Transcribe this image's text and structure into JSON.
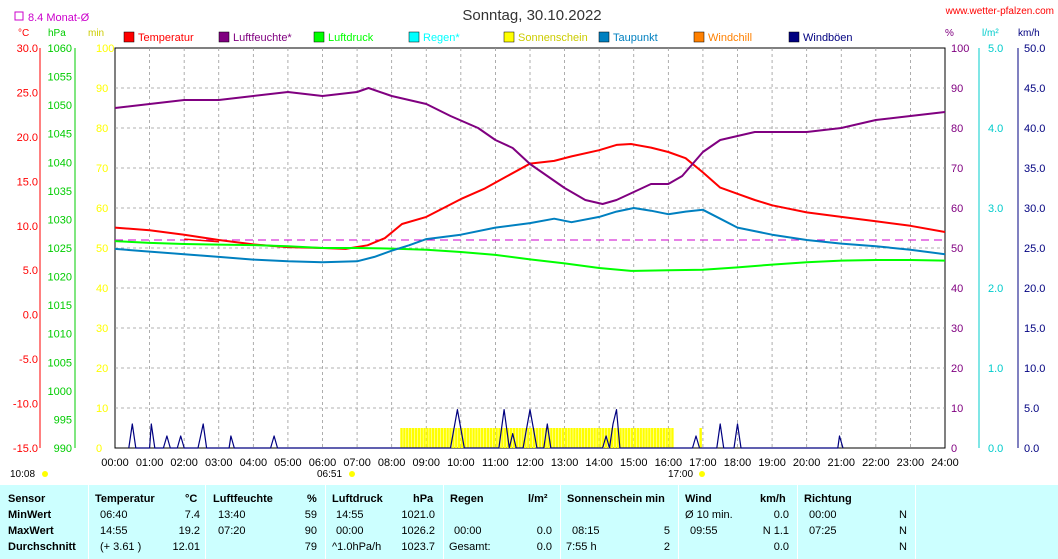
{
  "header": {
    "title": "Sonntag, 30.10.2022",
    "website": "www.wetter-pfalzen.com",
    "month_avg_label": "8.4 Monat-Ø",
    "unit_labels": {
      "temp": "°C",
      "pressure": "hPa",
      "sunshine": "min",
      "humidity": "%",
      "rain": "l/m²",
      "wind": "km/h"
    }
  },
  "footer": {
    "left_time": "10:08",
    "sunrise_time": "06:51",
    "sunset_time": "17:00"
  },
  "legend": [
    {
      "label": "Temperatur",
      "color": "#ff0000"
    },
    {
      "label": "Luftfeuchte*",
      "color": "#800080"
    },
    {
      "label": "Luftdruck",
      "color": "#00ff00"
    },
    {
      "label": "Regen*",
      "color": "#00ffff"
    },
    {
      "label": "Sonnenschein",
      "color": "#ffff00"
    },
    {
      "label": "Taupunkt",
      "color": "#0080c0"
    },
    {
      "label": "Windchill",
      "color": "#ff8000"
    },
    {
      "label": "Windböen",
      "color": "#000080"
    }
  ],
  "chart_data": {
    "type": "line",
    "title": "Sonntag, 30.10.2022",
    "x_ticks": [
      "00:00",
      "01:00",
      "02:00",
      "03:00",
      "04:00",
      "05:00",
      "06:00",
      "07:00",
      "08:00",
      "09:00",
      "10:00",
      "11:00",
      "12:00",
      "13:00",
      "14:00",
      "15:00",
      "16:00",
      "17:00",
      "18:00",
      "19:00",
      "20:00",
      "21:00",
      "22:00",
      "23:00",
      "24:00"
    ],
    "x_range_hours": [
      0,
      24
    ],
    "grid": true,
    "axes": {
      "temperature": {
        "unit": "°C",
        "range": [
          -15,
          30
        ],
        "ticks": [
          "30.0",
          "25.0",
          "20.0",
          "15.0",
          "10.0",
          "5.0",
          "0.0",
          "-5.0",
          "-10.0",
          "-15.0"
        ],
        "color": "#ff0000"
      },
      "pressure": {
        "unit": "hPa",
        "range": [
          990,
          1060
        ],
        "ticks": [
          "1060",
          "1055",
          "1050",
          "1045",
          "1040",
          "1035",
          "1030",
          "1025",
          "1020",
          "1015",
          "1010",
          "1005",
          "1000",
          "995",
          "990"
        ],
        "color": "#00cc00"
      },
      "sunshine": {
        "unit": "min",
        "range": [
          0,
          100
        ],
        "ticks": [
          "100",
          "90",
          "80",
          "70",
          "60",
          "50",
          "40",
          "30",
          "20",
          "10",
          "0"
        ],
        "color": "#ffff00"
      },
      "humidity": {
        "unit": "%",
        "range": [
          0,
          100
        ],
        "ticks": [
          "100",
          "90",
          "80",
          "70",
          "60",
          "50",
          "40",
          "30",
          "20",
          "10",
          "0"
        ],
        "color": "#800080"
      },
      "rain": {
        "unit": "l/m²",
        "range": [
          0,
          5
        ],
        "ticks": [
          "5.0",
          "4.0",
          "3.0",
          "2.0",
          "1.0",
          "0.0"
        ],
        "color": "#00cccc"
      },
      "wind": {
        "unit": "km/h",
        "range": [
          0,
          50
        ],
        "ticks": [
          "50.0",
          "45.0",
          "40.0",
          "35.0",
          "30.0",
          "25.0",
          "20.0",
          "15.0",
          "10.0",
          "5.0",
          "0.0"
        ],
        "color": "#000080"
      }
    },
    "month_avg_temperature": 8.4,
    "series": [
      {
        "name": "Temperatur",
        "color": "#ff0000",
        "axis": "temperature",
        "points": [
          [
            0,
            9.8
          ],
          [
            1,
            9.5
          ],
          [
            2,
            9.0
          ],
          [
            3,
            8.4
          ],
          [
            4,
            7.9
          ],
          [
            5,
            7.6
          ],
          [
            6,
            7.5
          ],
          [
            6.67,
            7.4
          ],
          [
            7.3,
            7.8
          ],
          [
            7.8,
            8.6
          ],
          [
            8.3,
            10.2
          ],
          [
            9,
            11.0
          ],
          [
            10,
            13.0
          ],
          [
            10.7,
            14.2
          ],
          [
            11.3,
            15.5
          ],
          [
            12,
            17.0
          ],
          [
            12.7,
            17.3
          ],
          [
            13.2,
            17.8
          ],
          [
            14,
            18.5
          ],
          [
            14.5,
            19.1
          ],
          [
            14.92,
            19.2
          ],
          [
            15.5,
            18.8
          ],
          [
            16,
            18.3
          ],
          [
            16.5,
            17.6
          ],
          [
            17,
            16.0
          ],
          [
            17.5,
            14.3
          ],
          [
            18,
            13.6
          ],
          [
            18.5,
            12.9
          ],
          [
            19,
            12.3
          ],
          [
            20,
            11.5
          ],
          [
            21,
            11.0
          ],
          [
            22,
            10.5
          ],
          [
            23,
            10.0
          ],
          [
            24,
            9.3
          ]
        ]
      },
      {
        "name": "Luftfeuchte*",
        "color": "#800080",
        "axis": "humidity",
        "points": [
          [
            0,
            85
          ],
          [
            1,
            86
          ],
          [
            2,
            87
          ],
          [
            3,
            87
          ],
          [
            4,
            88
          ],
          [
            5,
            89
          ],
          [
            6,
            88
          ],
          [
            7,
            89
          ],
          [
            7.33,
            90
          ],
          [
            8,
            88
          ],
          [
            8.5,
            87
          ],
          [
            9,
            86
          ],
          [
            9.7,
            83
          ],
          [
            10.5,
            80
          ],
          [
            11,
            77
          ],
          [
            11.5,
            75
          ],
          [
            12,
            71
          ],
          [
            12.5,
            68
          ],
          [
            13,
            65
          ],
          [
            13.6,
            62
          ],
          [
            14.1,
            61
          ],
          [
            14.5,
            62
          ],
          [
            15,
            64
          ],
          [
            15.5,
            66
          ],
          [
            16,
            66
          ],
          [
            16.4,
            68
          ],
          [
            17,
            74
          ],
          [
            17.5,
            77
          ],
          [
            18,
            78
          ],
          [
            18.5,
            79
          ],
          [
            19,
            79
          ],
          [
            20,
            79
          ],
          [
            21,
            80
          ],
          [
            22,
            82
          ],
          [
            23,
            83
          ],
          [
            24,
            84
          ]
        ]
      },
      {
        "name": "Luftdruck",
        "color": "#00ff00",
        "axis": "pressure",
        "points": [
          [
            0,
            1026.2
          ],
          [
            1,
            1025.9
          ],
          [
            2,
            1025.7
          ],
          [
            3,
            1025.6
          ],
          [
            4,
            1025.5
          ],
          [
            5,
            1025.3
          ],
          [
            6,
            1025.0
          ],
          [
            7,
            1025.0
          ],
          [
            8,
            1024.9
          ],
          [
            9,
            1024.7
          ],
          [
            10,
            1024.3
          ],
          [
            11,
            1023.8
          ],
          [
            12,
            1023.0
          ],
          [
            13,
            1022.3
          ],
          [
            14,
            1021.5
          ],
          [
            14.92,
            1021.0
          ],
          [
            16,
            1021.1
          ],
          [
            17,
            1021.2
          ],
          [
            18,
            1021.6
          ],
          [
            19,
            1022.1
          ],
          [
            20,
            1022.5
          ],
          [
            21,
            1022.8
          ],
          [
            22,
            1022.9
          ],
          [
            23,
            1022.9
          ],
          [
            24,
            1022.8
          ]
        ]
      },
      {
        "name": "Taupunkt",
        "color": "#0080c0",
        "axis": "temperature",
        "points": [
          [
            0,
            7.4
          ],
          [
            1,
            7.1
          ],
          [
            2,
            6.8
          ],
          [
            3,
            6.5
          ],
          [
            4,
            6.2
          ],
          [
            5,
            6.0
          ],
          [
            6,
            5.9
          ],
          [
            7,
            6.0
          ],
          [
            7.5,
            6.5
          ],
          [
            8,
            7.2
          ],
          [
            8.5,
            7.8
          ],
          [
            9,
            8.5
          ],
          [
            10,
            9.0
          ],
          [
            11,
            9.8
          ],
          [
            12,
            10.3
          ],
          [
            12.7,
            10.8
          ],
          [
            13.2,
            10.4
          ],
          [
            14,
            11.0
          ],
          [
            14.5,
            11.6
          ],
          [
            15,
            12.0
          ],
          [
            15.5,
            11.7
          ],
          [
            16,
            11.3
          ],
          [
            16.5,
            11.6
          ],
          [
            17,
            11.8
          ],
          [
            17.5,
            10.8
          ],
          [
            18,
            9.8
          ],
          [
            19,
            9.0
          ],
          [
            20,
            8.4
          ],
          [
            21,
            8.0
          ],
          [
            22,
            7.7
          ],
          [
            23,
            7.3
          ],
          [
            24,
            6.8
          ]
        ]
      },
      {
        "name": "Windböen",
        "color": "#000080",
        "axis": "wind",
        "points": [
          [
            0.4,
            0
          ],
          [
            0.5,
            3
          ],
          [
            0.6,
            0
          ],
          [
            1,
            0
          ],
          [
            1.05,
            3
          ],
          [
            1.15,
            0
          ],
          [
            1.4,
            0
          ],
          [
            1.5,
            1.5
          ],
          [
            1.6,
            0
          ],
          [
            1.8,
            0
          ],
          [
            1.9,
            1.5
          ],
          [
            2.0,
            0
          ],
          [
            2.4,
            0
          ],
          [
            2.55,
            3
          ],
          [
            2.65,
            0
          ],
          [
            3.3,
            0
          ],
          [
            3.35,
            1.5
          ],
          [
            3.45,
            0
          ],
          [
            4.5,
            0
          ],
          [
            4.6,
            1.5
          ],
          [
            4.7,
            0
          ],
          [
            9.7,
            0
          ],
          [
            9.9,
            4.8
          ],
          [
            10.1,
            0
          ],
          [
            11.1,
            0
          ],
          [
            11.25,
            4.8
          ],
          [
            11.4,
            0
          ],
          [
            11.4,
            0
          ],
          [
            11.5,
            1.8
          ],
          [
            11.6,
            0
          ],
          [
            11.8,
            0
          ],
          [
            12,
            4.8
          ],
          [
            12.2,
            0
          ],
          [
            12.4,
            0
          ],
          [
            12.5,
            3
          ],
          [
            12.6,
            0
          ],
          [
            14.1,
            0
          ],
          [
            14.2,
            1.5
          ],
          [
            14.3,
            0
          ],
          [
            14.3,
            0
          ],
          [
            14.4,
            3
          ],
          [
            14.5,
            4.8
          ],
          [
            14.6,
            0
          ],
          [
            16.7,
            0
          ],
          [
            16.8,
            1.5
          ],
          [
            16.9,
            0
          ],
          [
            17.4,
            0
          ],
          [
            17.5,
            3
          ],
          [
            17.6,
            0
          ],
          [
            17.9,
            0
          ],
          [
            18,
            3
          ],
          [
            18.1,
            0
          ],
          [
            20.9,
            0
          ],
          [
            20.95,
            1.5
          ],
          [
            21.05,
            0
          ]
        ]
      }
    ],
    "sunshine_bars": {
      "name": "Sonnenschein",
      "color": "#ffff00",
      "axis": "sunshine",
      "start_hour": 8.25,
      "end_hour": 16.1,
      "value": 5,
      "extra_bars": [
        16.9
      ]
    },
    "windchill_segment": {
      "name": "Windchill",
      "color": "#ff0000",
      "axis": "temperature",
      "points": [
        [
          2,
          8.5
        ],
        [
          3,
          8.2
        ]
      ]
    }
  },
  "stats": {
    "sensor": {
      "label": "Sensor",
      "rows": [
        "MinWert",
        "MaxWert",
        "Durchschnitt"
      ]
    },
    "temperature": {
      "label": "Temperatur",
      "unit": "°C",
      "rows": [
        [
          "06:40",
          "7.4"
        ],
        [
          "14:55",
          "19.2"
        ],
        [
          "(+ 3.61 )",
          "12.01"
        ]
      ]
    },
    "humidity": {
      "label": "Luftfeuchte",
      "unit": "%",
      "rows": [
        [
          "13:40",
          "59"
        ],
        [
          "07:20",
          "90"
        ],
        [
          "",
          "79"
        ]
      ]
    },
    "pressure": {
      "label": "Luftdruck",
      "unit": "hPa",
      "rows": [
        [
          "14:55",
          "1021.0"
        ],
        [
          "00:00",
          "1026.2"
        ],
        [
          "^1.0hPa/h",
          "1023.7"
        ]
      ]
    },
    "rain": {
      "label": "Regen",
      "unit": "l/m²",
      "rows": [
        [
          "",
          ""
        ],
        [
          "00:00",
          "0.0"
        ],
        [
          "Gesamt:",
          "0.0"
        ]
      ]
    },
    "sunshine": {
      "label": "Sonnenschein min",
      "unit": "",
      "rows": [
        [
          "",
          ""
        ],
        [
          "08:15",
          "5"
        ],
        [
          "7:55 h",
          "2"
        ]
      ]
    },
    "wind": {
      "label": "Wind",
      "unit": "km/h",
      "rows": [
        [
          "Ø 10 min.",
          "0.0"
        ],
        [
          "09:55",
          "N 1.1"
        ],
        [
          "",
          "0.0"
        ]
      ]
    },
    "direction": {
      "label": "Richtung",
      "unit": "",
      "rows": [
        [
          "00:00",
          "N"
        ],
        [
          "07:25",
          "N"
        ],
        [
          "",
          "N"
        ]
      ]
    }
  }
}
